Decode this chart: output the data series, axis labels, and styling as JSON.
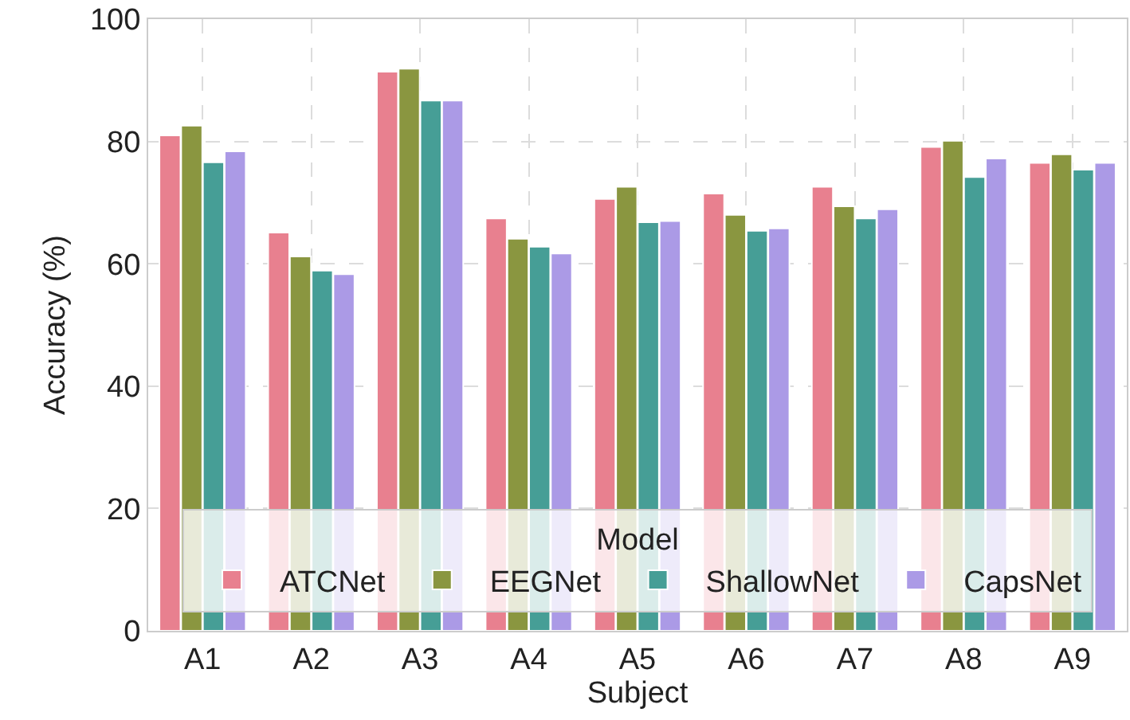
{
  "chart_data": {
    "type": "bar",
    "xlabel": "Subject",
    "ylabel": "Accuracy (%)",
    "legend_title": "Model",
    "categories": [
      "A1",
      "A2",
      "A3",
      "A4",
      "A5",
      "A6",
      "A7",
      "A8",
      "A9"
    ],
    "series": [
      {
        "name": "ATCNet",
        "color": "#e8808f",
        "values": [
          81.0,
          65.1,
          91.4,
          67.4,
          70.6,
          71.5,
          72.6,
          79.1,
          76.5
        ]
      },
      {
        "name": "EEGNet",
        "color": "#8a9640",
        "values": [
          82.6,
          61.2,
          91.9,
          64.1,
          72.6,
          68.0,
          69.4,
          80.1,
          77.9
        ]
      },
      {
        "name": "ShallowNet",
        "color": "#469e96",
        "values": [
          76.6,
          58.9,
          86.7,
          62.8,
          66.8,
          65.4,
          67.4,
          74.2,
          75.4
        ]
      },
      {
        "name": "CapsNet",
        "color": "#ab9ae6",
        "values": [
          78.4,
          58.3,
          86.7,
          61.7,
          67.0,
          65.8,
          68.9,
          77.2,
          76.5
        ]
      }
    ],
    "ylim": [
      0,
      100
    ],
    "yticks": [
      0,
      20,
      40,
      60,
      80,
      100
    ],
    "grid": true,
    "legend": "bottom"
  }
}
